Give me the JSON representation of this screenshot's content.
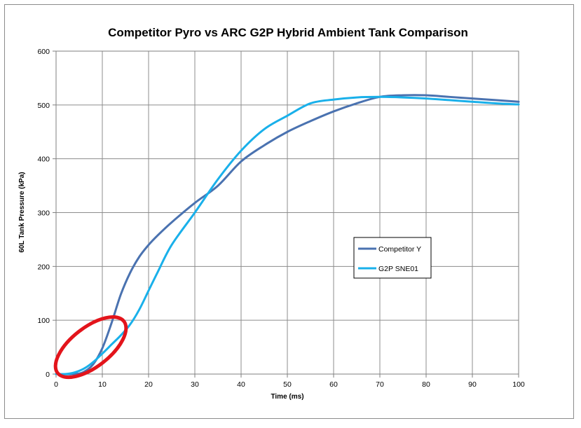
{
  "chart_data": {
    "type": "line",
    "title": "Competitor Pyro vs ARC G2P Hybrid Ambient Tank Comparison",
    "xlabel": "Time (ms)",
    "ylabel": "60L Tank Pressure (kPa)",
    "xlim": [
      0,
      100
    ],
    "ylim": [
      0,
      600
    ],
    "x_ticks": [
      "0",
      "10",
      "20",
      "30",
      "40",
      "50",
      "60",
      "70",
      "80",
      "90",
      "100"
    ],
    "y_ticks": [
      "0",
      "100",
      "200",
      "300",
      "400",
      "500",
      "600"
    ],
    "grid": true,
    "legend_position": "right",
    "series": [
      {
        "name": "Competitor Y",
        "color": "#4a72b0",
        "points": [
          [
            0,
            0
          ],
          [
            4,
            0
          ],
          [
            6,
            4
          ],
          [
            8,
            18
          ],
          [
            10,
            48
          ],
          [
            12,
            95
          ],
          [
            14,
            148
          ],
          [
            16,
            188
          ],
          [
            18,
            218
          ],
          [
            20,
            240
          ],
          [
            22,
            258
          ],
          [
            25,
            282
          ],
          [
            30,
            318
          ],
          [
            35,
            350
          ],
          [
            40,
            395
          ],
          [
            45,
            425
          ],
          [
            50,
            450
          ],
          [
            55,
            470
          ],
          [
            60,
            488
          ],
          [
            65,
            503
          ],
          [
            70,
            515
          ],
          [
            75,
            518
          ],
          [
            80,
            518
          ],
          [
            85,
            515
          ],
          [
            90,
            512
          ],
          [
            95,
            509
          ],
          [
            100,
            506
          ]
        ]
      },
      {
        "name": "G2P SNE01",
        "color": "#19b0ea",
        "points": [
          [
            0,
            0
          ],
          [
            2,
            0
          ],
          [
            4,
            3
          ],
          [
            6,
            10
          ],
          [
            8,
            22
          ],
          [
            10,
            38
          ],
          [
            12,
            55
          ],
          [
            14,
            72
          ],
          [
            16,
            92
          ],
          [
            18,
            120
          ],
          [
            20,
            155
          ],
          [
            22,
            190
          ],
          [
            25,
            240
          ],
          [
            30,
            300
          ],
          [
            35,
            362
          ],
          [
            40,
            415
          ],
          [
            45,
            455
          ],
          [
            50,
            480
          ],
          [
            55,
            503
          ],
          [
            60,
            510
          ],
          [
            65,
            514
          ],
          [
            70,
            515
          ],
          [
            75,
            514
          ],
          [
            80,
            512
          ],
          [
            85,
            509
          ],
          [
            90,
            506
          ],
          [
            95,
            503
          ],
          [
            100,
            501
          ]
        ]
      }
    ],
    "annotations": [
      {
        "shape": "ellipse",
        "color": "#e3141b",
        "center_x": 7.5,
        "center_y": 50
      }
    ]
  }
}
